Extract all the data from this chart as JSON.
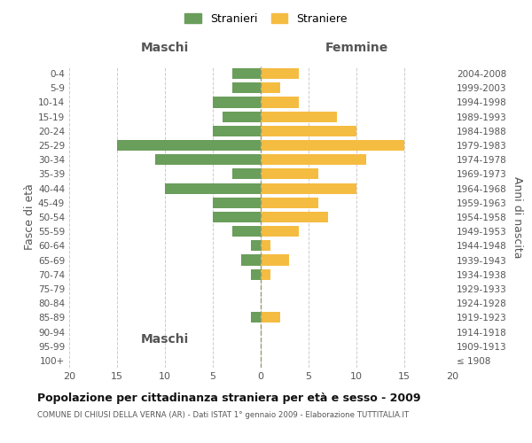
{
  "age_groups": [
    "100+",
    "95-99",
    "90-94",
    "85-89",
    "80-84",
    "75-79",
    "70-74",
    "65-69",
    "60-64",
    "55-59",
    "50-54",
    "45-49",
    "40-44",
    "35-39",
    "30-34",
    "25-29",
    "20-24",
    "15-19",
    "10-14",
    "5-9",
    "0-4"
  ],
  "birth_years": [
    "≤ 1908",
    "1909-1913",
    "1914-1918",
    "1919-1923",
    "1924-1928",
    "1929-1933",
    "1934-1938",
    "1939-1943",
    "1944-1948",
    "1949-1953",
    "1954-1958",
    "1959-1963",
    "1964-1968",
    "1969-1973",
    "1974-1978",
    "1979-1983",
    "1984-1988",
    "1989-1993",
    "1994-1998",
    "1999-2003",
    "2004-2008"
  ],
  "males": [
    0,
    0,
    0,
    1,
    0,
    0,
    1,
    2,
    1,
    3,
    5,
    5,
    10,
    3,
    11,
    15,
    5,
    4,
    5,
    3,
    3
  ],
  "females": [
    0,
    0,
    0,
    2,
    0,
    0,
    1,
    3,
    1,
    4,
    7,
    6,
    10,
    6,
    11,
    15,
    10,
    8,
    4,
    2,
    4
  ],
  "male_color": "#6a9e5b",
  "female_color": "#f5bc42",
  "bar_height": 0.75,
  "xlim": 20,
  "title": "Popolazione per cittadinanza straniera per età e sesso - 2009",
  "subtitle": "COMUNE DI CHIUSI DELLA VERNA (AR) - Dati ISTAT 1° gennaio 2009 - Elaborazione TUTTITALIA.IT",
  "ylabel_left": "Fasce di età",
  "ylabel_right": "Anni di nascita",
  "xlabel_left": "Maschi",
  "xlabel_top_right": "Femmine",
  "legend_stranieri": "Stranieri",
  "legend_straniere": "Straniere",
  "background_color": "#ffffff",
  "grid_color": "#cccccc",
  "tick_label_color": "#555555",
  "title_color": "#111111",
  "subtitle_color": "#555555"
}
